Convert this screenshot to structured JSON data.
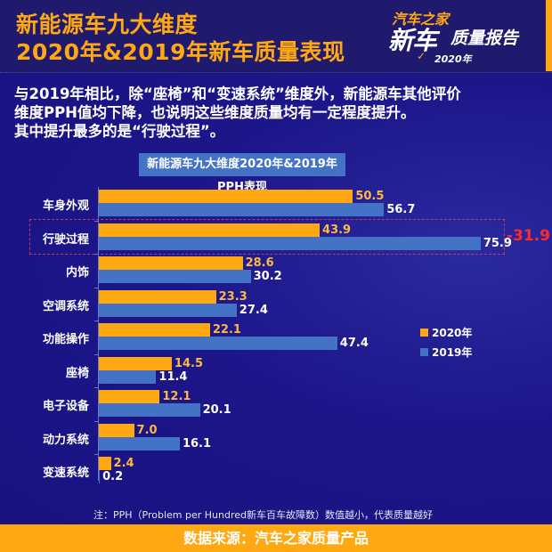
{
  "header": {
    "title_line1": "新能源车九大维度",
    "title_line2": "2020年&2019年新车质量表现",
    "logo": {
      "line1": "汽车之家",
      "line2a": "新车",
      "line2b": "质量报告",
      "line3": "2020年"
    }
  },
  "description": {
    "line1": "与2019年相比，除“座椅”和“变速系统”维度外，新能源车其他评价",
    "line2": "维度PPH值均下降，也说明这些维度质量均有一定程度提升。",
    "line3": "其中提升最多的是“行驶过程”。"
  },
  "highlight": {
    "category": "行驶过程",
    "delta": "-31.9",
    "color": "#ff2a2a"
  },
  "legend": {
    "y2020": "2020年",
    "y2019": "2019年"
  },
  "colors": {
    "y2020": "#ffa812",
    "y2019": "#4472c4",
    "background": "#1b1478",
    "accent": "#ffa812"
  },
  "note": "注：PPH（Problem per Hundred新车百车故障数）数值越小，代表质量越好",
  "footer": "数据来源：汽车之家质量产品",
  "chart_data": {
    "type": "bar",
    "orientation": "horizontal",
    "title": "新能源车九大维度2020年&2019年PPH表现",
    "xlabel": "",
    "ylabel": "",
    "categories": [
      "车身外观",
      "行驶过程",
      "内饰",
      "空调系统",
      "功能操作",
      "座椅",
      "电子设备",
      "动力系统",
      "变速系统"
    ],
    "series": [
      {
        "name": "2020年",
        "color": "#ffa812",
        "values": [
          50.5,
          43.9,
          28.6,
          23.3,
          22.1,
          14.5,
          12.1,
          7.0,
          2.4
        ],
        "labels": [
          "50.5",
          "43.9",
          "28.6",
          "23.3",
          "22.1",
          "14.5",
          "12.1",
          "7.0",
          "2.4"
        ]
      },
      {
        "name": "2019年",
        "color": "#4472c4",
        "values": [
          56.7,
          75.9,
          30.2,
          27.4,
          47.4,
          11.4,
          20.1,
          16.1,
          0.2
        ],
        "labels": [
          "56.7",
          "75.9",
          "30.2",
          "27.4",
          "47.4",
          "11.4",
          "20.1",
          "16.1",
          "0.2"
        ]
      }
    ],
    "annotations": [
      {
        "category": "行驶过程",
        "text": "-31.9",
        "color": "#ff2a2a"
      }
    ],
    "xlim": [
      0,
      80
    ],
    "grid": false,
    "legend_position": "right"
  }
}
